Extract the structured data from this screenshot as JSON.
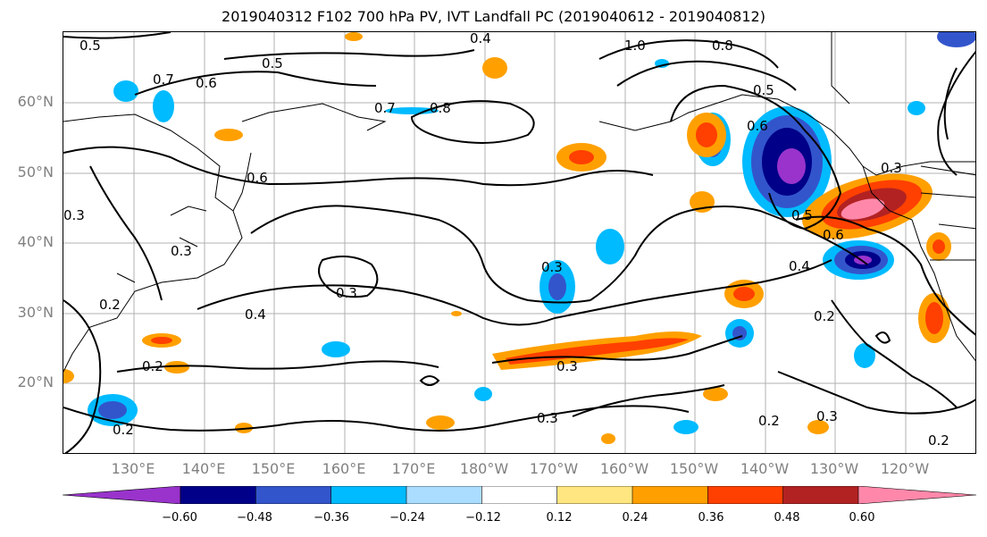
{
  "title": "2019040312 F102 700 hPa PV, IVT Landfall PC (2019040612 - 2019040812)",
  "map": {
    "lat_labels": [
      "60°N",
      "50°N",
      "40°N",
      "30°N",
      "20°N"
    ],
    "lon_labels": [
      "130°E",
      "140°E",
      "150°E",
      "160°E",
      "170°E",
      "180°W",
      "170°W",
      "160°W",
      "150°W",
      "140°W",
      "130°W",
      "120°W"
    ],
    "contour_labels": [
      "0.5",
      "0.4",
      "0.5",
      "0.7",
      "0.6",
      "0.7",
      "0.8",
      "1.0",
      "0.8",
      "0.5",
      "0.6",
      "0.6",
      "0.3",
      "0.3",
      "0.3",
      "0.4",
      "0.5",
      "0.6",
      "0.4",
      "0.3",
      "0.2",
      "0.2",
      "0.3",
      "0.3",
      "0.2",
      "0.3",
      "0.2",
      "0.2",
      "0.3",
      "0.2"
    ]
  },
  "colorbar": {
    "colors": [
      "#9933cc",
      "#000088",
      "#3355cc",
      "#00bbff",
      "#aaddff",
      "#ffffff",
      "#ffe680",
      "#ffa000",
      "#ff4000",
      "#b22222",
      "#ff88aa"
    ],
    "ticks": [
      "−0.60",
      "−0.48",
      "−0.36",
      "−0.24",
      "−0.12",
      "0.12",
      "0.24",
      "0.36",
      "0.48",
      "0.60"
    ]
  }
}
